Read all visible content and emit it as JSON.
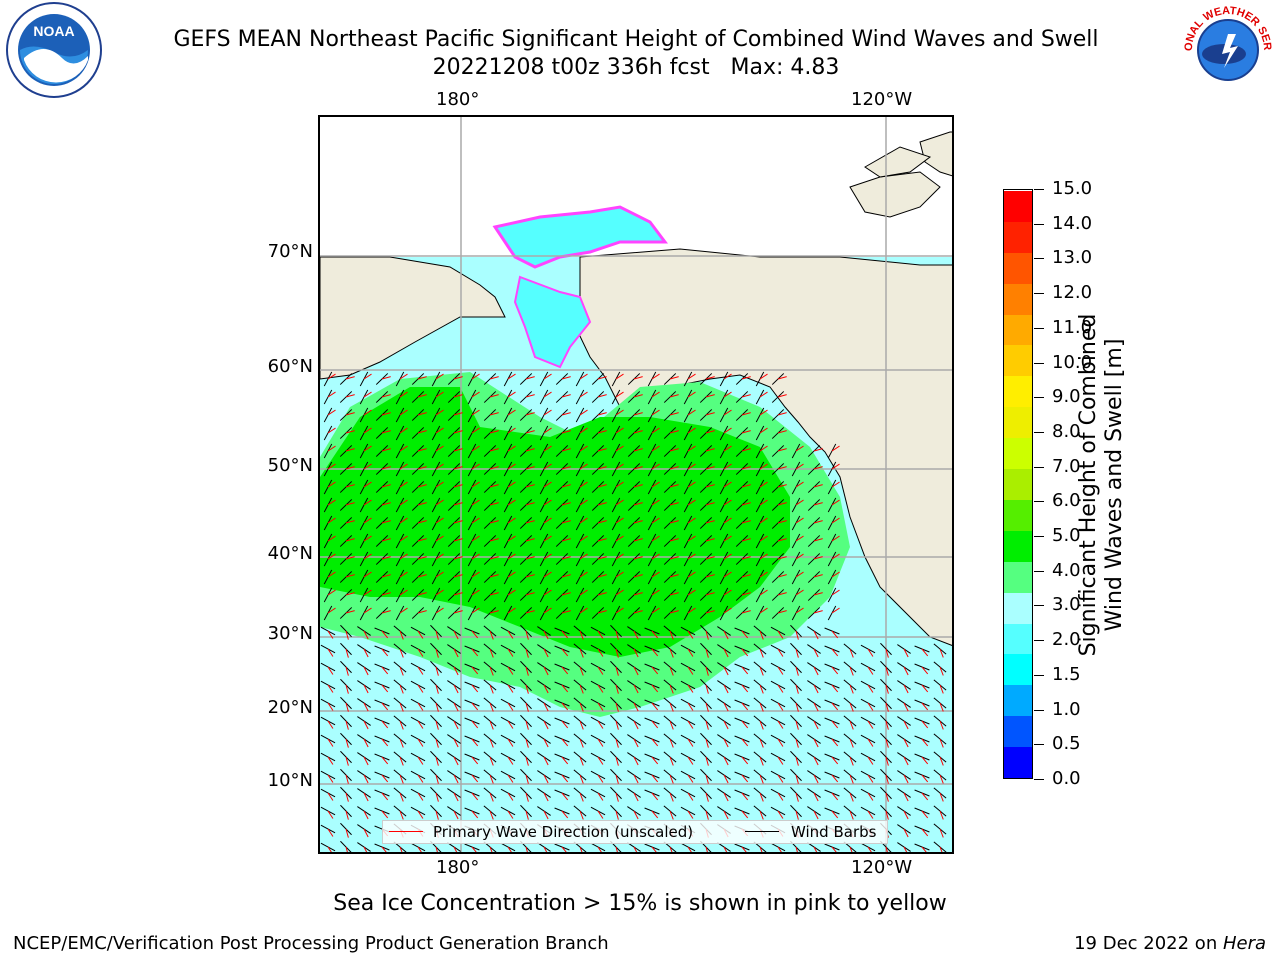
{
  "title": {
    "line1": "GEFS MEAN Northeast Pacific Significant Height of Combined Wind Waves and Swell",
    "line2": "20221208 t00z 336h fcst   Max: 4.83"
  },
  "logos": {
    "left": "noaa-logo",
    "left_text": "NOAA",
    "right": "nws-logo",
    "right_text": "NATIONAL WEATHER SERVICE"
  },
  "axes": {
    "top_lon": [
      "180°",
      "120°W"
    ],
    "bottom_lon": [
      "180°",
      "120°W"
    ],
    "lat": [
      "70°N",
      "60°N",
      "50°N",
      "40°N",
      "30°N",
      "20°N",
      "10°N"
    ]
  },
  "legend": {
    "wave_label": "Primary Wave Direction (unscaled)",
    "wind_label": "Wind Barbs",
    "wave_color": "#ff0000",
    "wind_color": "#000000"
  },
  "colorbar": {
    "label_line1": "Significant Height of Combined",
    "label_line2": "Wind Waves and Swell [m]",
    "ticks": [
      "0.0",
      "0.5",
      "1.0",
      "1.5",
      "2.0",
      "2.5",
      "3.0",
      "4.0",
      "5.0",
      "6.0",
      "7.0",
      "8.0",
      "9.0",
      "10.0",
      "11.0",
      "12.0",
      "13.0",
      "14.0",
      "15.0"
    ],
    "tick_labels": [
      "0.0",
      "0.5",
      "1.0",
      "1.5",
      "2.0",
      "3.0",
      "4.0",
      "5.0",
      "6.0",
      "7.0",
      "8.0",
      "9.0",
      "10.0",
      "11.0",
      "12.0",
      "13.0",
      "14.0",
      "15.0"
    ],
    "colors": [
      "#0000ff",
      "#0055ff",
      "#00aaff",
      "#00ffff",
      "#55ffff",
      "#aaffff",
      "#55ff80",
      "#00ee00",
      "#55ee00",
      "#aaee00",
      "#ccff00",
      "#eeee00",
      "#ffee00",
      "#ffcc00",
      "#ffaa00",
      "#ff8000",
      "#ff5500",
      "#ff2200",
      "#ff0000"
    ]
  },
  "subcaption": "Sea Ice Concentration > 15% is shown in pink to yellow",
  "footer": {
    "left": "NCEP/EMC/Verification Post Processing Product Generation Branch",
    "right_date": "19 Dec 2022 on ",
    "right_host": "Hera"
  },
  "map_colors": {
    "land": "#efecdc",
    "ocean_low": "#aaffff",
    "ocean_mid": "#55ff80",
    "ocean_high": "#00ee00",
    "ice": "#ff44ff",
    "grid": "#aaaaaa"
  }
}
